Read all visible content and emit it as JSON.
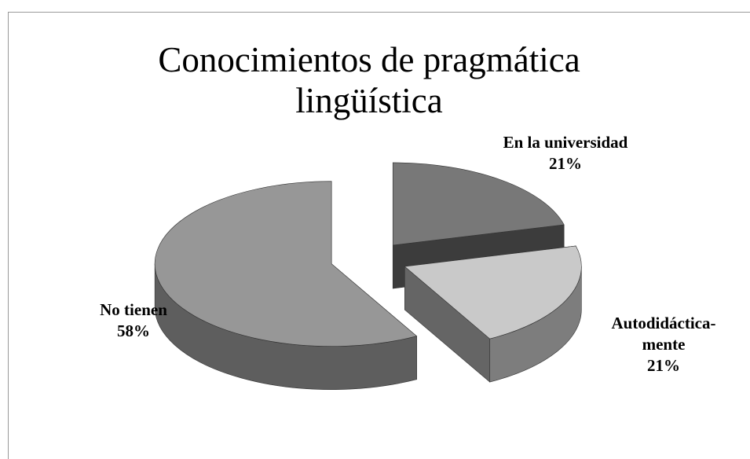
{
  "chart_data": {
    "type": "pie",
    "title": "Conocimientos de pragmática lingüística",
    "categories": [
      "En la universidad",
      "Autodidáctica-mente",
      "No tienen"
    ],
    "values": [
      21,
      21,
      58
    ],
    "value_labels": [
      "21%",
      "21%",
      "58%"
    ],
    "colors": [
      "#787878",
      "#c9c9c9",
      "#979797"
    ]
  }
}
